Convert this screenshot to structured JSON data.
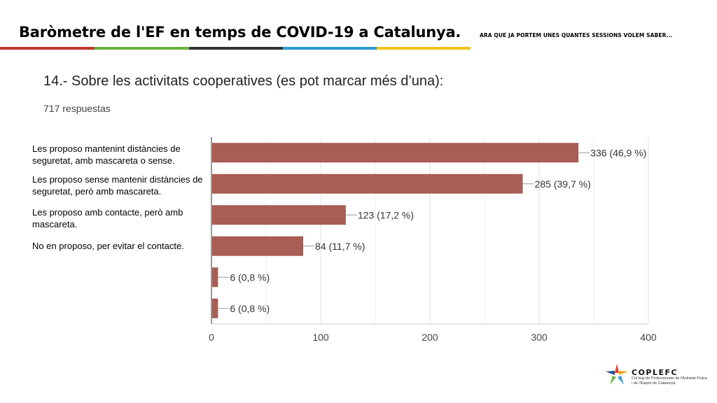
{
  "header": {
    "title": "Baròmetre de l'EF en temps de COVID-19 a Catalunya.",
    "subtitle": "ARA QUE JA PORTEM UNES QUANTES SESSIONS VOLEM SABER...",
    "stripe_colors": [
      "#c0392b",
      "#6ab33e",
      "#333333",
      "#2a9bd5",
      "#f2c418"
    ]
  },
  "question": "14.- Sobre les activitats cooperatives (es pot marcar més d’una):",
  "responses": "717 respuestas",
  "logo": {
    "name": "COPLEFC",
    "subtitle": "Col·legi de Professionals de l'Activitat Física i de l'Esport de Catalunya"
  },
  "chart_data": {
    "type": "bar",
    "orientation": "horizontal",
    "categories": [
      "Les proposo mantenint distàncies de seguretat, amb mascareta o sense.",
      "Les proposo sense mantenir distàncies de seguretat, però amb mascareta.",
      "Les proposo amb contacte, però amb mascareta.",
      "No en proposo, per evitar el contacte.",
      "",
      ""
    ],
    "values": [
      336,
      285,
      123,
      84,
      6,
      6
    ],
    "value_labels": [
      "336 (46,9 %)",
      "285 (39,7 %)",
      "123 (17,2 %)",
      "84 (11,7 %)",
      "6 (0,8 %)",
      "6 (0,8 %)"
    ],
    "xlim": [
      0,
      400
    ],
    "xticks": [
      0,
      100,
      200,
      300,
      400
    ],
    "xtick_labels": [
      "0",
      "100",
      "200",
      "300",
      "400"
    ],
    "grid": true,
    "bar_color": "#a85d55"
  }
}
